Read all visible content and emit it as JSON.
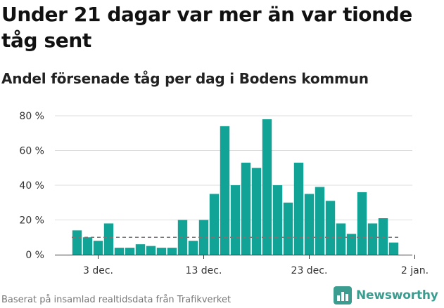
{
  "title": "Under 21 dagar var mer än var tionde tåg sent",
  "subtitle": "Andel försenade tåg per dag i Bodens kommun",
  "source": "Baserat på insamlad realtidsdata från Trafikverket",
  "logo_text": "Newsworthy",
  "colors": {
    "bar": "#11a496",
    "reference_line": "#777777",
    "axis": "#333333",
    "grid": "#dddddd",
    "brand": "#3a9d8f"
  },
  "chart_data": {
    "type": "bar",
    "title": "",
    "xlabel": "",
    "ylabel": "",
    "ylim": [
      0,
      80
    ],
    "y_ticks": [
      0,
      20,
      40,
      60,
      80
    ],
    "y_tick_labels": [
      "0 %",
      "20 %",
      "40 %",
      "60 %",
      "80 %"
    ],
    "y_unit": "%",
    "grid": "horizontal",
    "x_start_date": "2021-12-01",
    "x_ticks": [
      {
        "date": "2021-12-03",
        "label": "3 dec."
      },
      {
        "date": "2021-12-13",
        "label": "13 dec."
      },
      {
        "date": "2021-12-23",
        "label": "23 dec."
      },
      {
        "date": "2022-01-02",
        "label": "2 jan."
      }
    ],
    "values": [
      14,
      10,
      8,
      18,
      4,
      4,
      6,
      5,
      4,
      4,
      20,
      8,
      20,
      35,
      74,
      40,
      53,
      50,
      78,
      40,
      30,
      53,
      35,
      39,
      31,
      18,
      12,
      36,
      18,
      21,
      7
    ],
    "reference_line": 10
  }
}
